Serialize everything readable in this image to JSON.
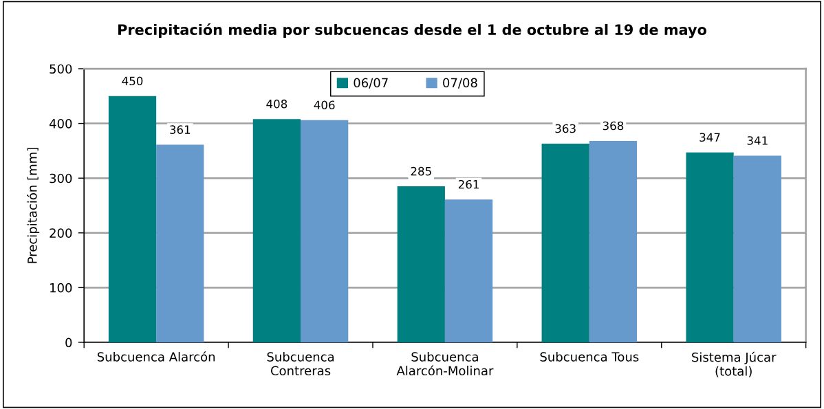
{
  "chart_data": {
    "type": "bar",
    "title": "Precipitación media por subcuencas desde el 1 de octubre al 19 de mayo",
    "ylabel": "Precipitación [mm]",
    "categories": [
      "Subcuenca Alarcón",
      "Subcuenca\nContreras",
      "Subcuenca\nAlarcón-Molinar",
      "Subcuenca Tous",
      "Sistema Júcar\n(total)"
    ],
    "series": [
      {
        "name": "06/07",
        "color": "#008080",
        "values": [
          450,
          408,
          285,
          363,
          347
        ]
      },
      {
        "name": "07/08",
        "color": "#6699cc",
        "values": [
          361,
          406,
          261,
          368,
          341
        ]
      }
    ],
    "ylim": [
      0,
      500
    ],
    "yticks": [
      0,
      100,
      200,
      300,
      400,
      500
    ],
    "grid": "y",
    "legend": "top",
    "data_labels": true
  }
}
